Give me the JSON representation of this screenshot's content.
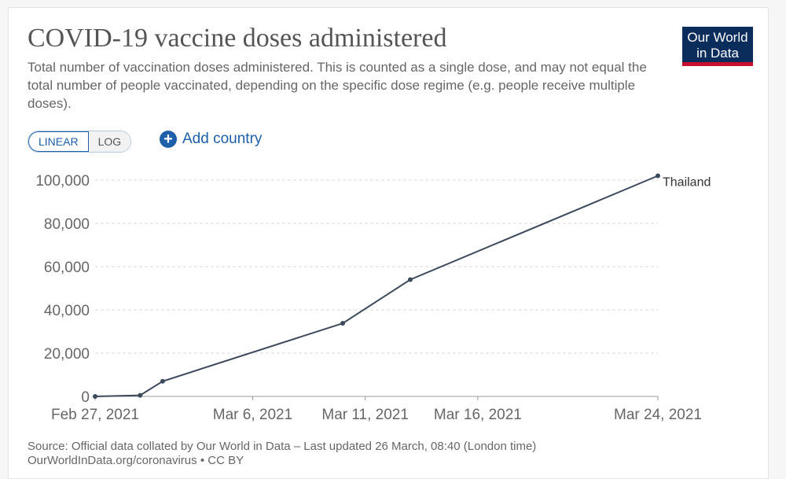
{
  "header": {
    "title": "COVID-19 vaccine doses administered",
    "subtitle": "Total number of vaccination doses administered. This is counted as a single dose, and may not equal the total number of people vaccinated, depending on the specific dose regime (e.g. people receive multiple doses)."
  },
  "logo": {
    "line1": "Our World",
    "line2": "in Data",
    "bg_color": "#0b2d5c",
    "accent_color": "#c8102e"
  },
  "controls": {
    "linear_label": "LINEAR",
    "log_label": "LOG",
    "add_country_label": "Add country",
    "add_icon": "plus-circle-icon"
  },
  "chart_data": {
    "type": "line",
    "y_scale": "linear",
    "ylim": [
      0,
      100000
    ],
    "y_ticks": [
      0,
      20000,
      40000,
      60000,
      80000,
      100000
    ],
    "y_tick_labels": [
      "0",
      "20,000",
      "40,000",
      "60,000",
      "80,000",
      "100,000"
    ],
    "x_range": [
      "2021-02-27",
      "2021-03-24"
    ],
    "x_ticks": [
      "2021-02-27",
      "2021-03-06",
      "2021-03-11",
      "2021-03-16",
      "2021-03-24"
    ],
    "x_tick_labels": [
      "Feb 27, 2021",
      "Mar 6, 2021",
      "Mar 11, 2021",
      "Mar 16, 2021",
      "Mar 24, 2021"
    ],
    "grid": "horizontal-dashed",
    "series": [
      {
        "name": "Thailand",
        "color": "#3d4a5c",
        "points": [
          {
            "x": "2021-02-27",
            "y": 0
          },
          {
            "x": "2021-03-01",
            "y": 500
          },
          {
            "x": "2021-03-02",
            "y": 7000
          },
          {
            "x": "2021-03-10",
            "y": 33800
          },
          {
            "x": "2021-03-13",
            "y": 54000
          },
          {
            "x": "2021-03-24",
            "y": 102000
          }
        ]
      }
    ]
  },
  "footer": {
    "source": "Source: Official data collated by Our World in Data – Last updated 26 March, 08:40 (London time)",
    "url": "OurWorldInData.org/coronavirus • CC BY"
  }
}
